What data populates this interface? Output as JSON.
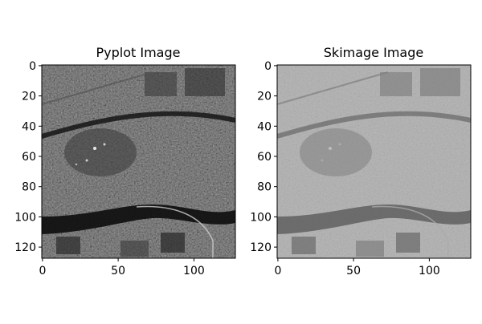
{
  "figure": {
    "panels": [
      {
        "title": "Pyplot Image",
        "image_description": "grayscale aerial satellite image, high contrast: dark river band curving across lower half, bright urban/built area mid-left, fields at bottom",
        "tone": "high-contrast",
        "xticks": [
          "0",
          "50",
          "100"
        ],
        "yticks": [
          "0",
          "20",
          "40",
          "60",
          "80",
          "100",
          "120"
        ]
      },
      {
        "title": "Skimage Image",
        "image_description": "same grayscale aerial image rendered with low contrast (washed-out mid gray)",
        "tone": "low-contrast",
        "xticks": [
          "0",
          "50",
          "100"
        ],
        "yticks": [
          "0",
          "20",
          "40",
          "60",
          "80",
          "100",
          "120"
        ]
      }
    ]
  }
}
